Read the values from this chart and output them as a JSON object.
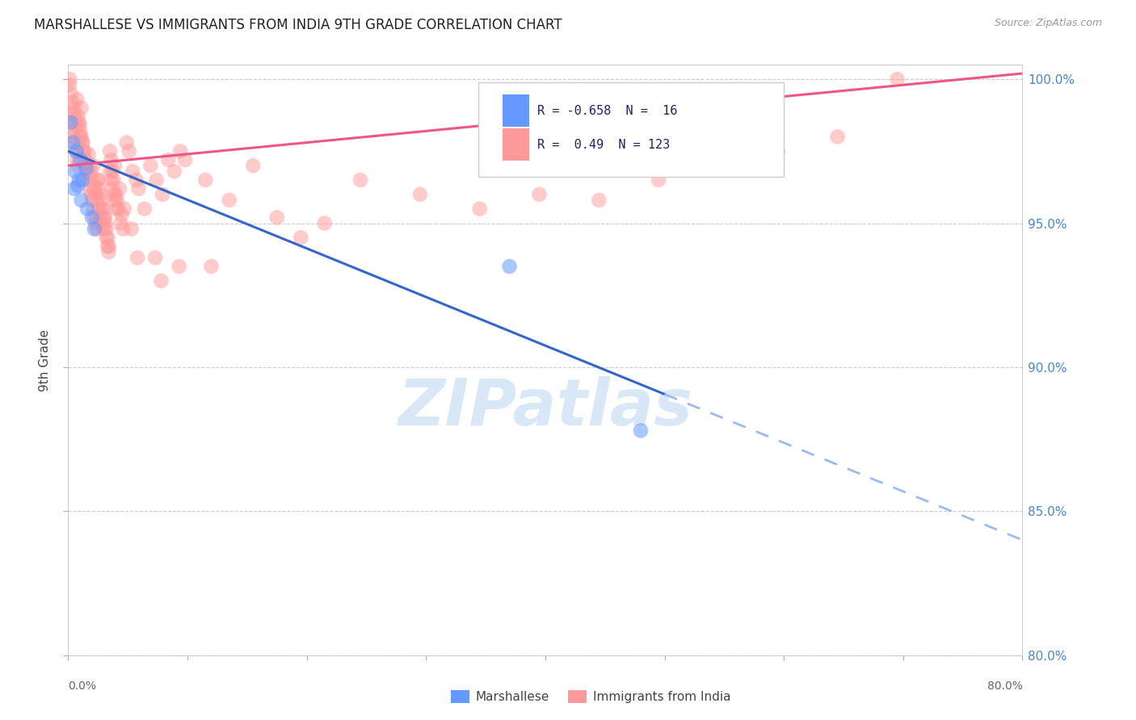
{
  "title": "MARSHALLESE VS IMMIGRANTS FROM INDIA 9TH GRADE CORRELATION CHART",
  "source": "Source: ZipAtlas.com",
  "ylabel": "9th Grade",
  "xlim": [
    0.0,
    80.0
  ],
  "ylim": [
    80.0,
    100.5
  ],
  "xtick_values": [
    0,
    10,
    20,
    30,
    40,
    50,
    60,
    70,
    80
  ],
  "ytick_labels": [
    "80.0%",
    "85.0%",
    "90.0%",
    "95.0%",
    "100.0%"
  ],
  "ytick_values": [
    80,
    85,
    90,
    95,
    100
  ],
  "blue_color": "#6699FF",
  "blue_line_color": "#3366CC",
  "blue_dash_color": "#99BBEE",
  "pink_color": "#FF9999",
  "pink_line_color": "#EE5588",
  "blue_label": "Marshallese",
  "pink_label": "Immigrants from India",
  "blue_R": -0.658,
  "blue_N": 16,
  "pink_R": 0.49,
  "pink_N": 123,
  "blue_scatter": [
    [
      0.2,
      98.5
    ],
    [
      0.4,
      97.8
    ],
    [
      0.7,
      97.5
    ],
    [
      1.0,
      97.2
    ],
    [
      0.6,
      96.8
    ],
    [
      1.2,
      96.5
    ],
    [
      1.5,
      96.9
    ],
    [
      0.5,
      96.2
    ],
    [
      0.9,
      96.5
    ],
    [
      1.1,
      95.8
    ],
    [
      0.8,
      96.3
    ],
    [
      1.6,
      95.5
    ],
    [
      2.0,
      95.2
    ],
    [
      2.2,
      94.8
    ],
    [
      37.0,
      93.5
    ],
    [
      48.0,
      87.8
    ]
  ],
  "pink_scatter": [
    [
      0.1,
      99.8
    ],
    [
      0.15,
      100.0
    ],
    [
      0.25,
      99.5
    ],
    [
      0.35,
      99.2
    ],
    [
      0.5,
      99.0
    ],
    [
      0.55,
      98.8
    ],
    [
      0.65,
      98.5
    ],
    [
      0.75,
      99.3
    ],
    [
      0.85,
      98.7
    ],
    [
      0.95,
      98.4
    ],
    [
      1.0,
      98.0
    ],
    [
      1.1,
      99.0
    ],
    [
      1.2,
      97.8
    ],
    [
      1.3,
      97.5
    ],
    [
      1.4,
      97.2
    ],
    [
      1.5,
      97.0
    ],
    [
      1.6,
      96.8
    ],
    [
      1.7,
      97.4
    ],
    [
      1.8,
      97.0
    ],
    [
      1.9,
      96.8
    ],
    [
      2.0,
      96.5
    ],
    [
      2.1,
      97.0
    ],
    [
      2.2,
      96.2
    ],
    [
      2.3,
      96.0
    ],
    [
      2.4,
      95.8
    ],
    [
      2.5,
      96.5
    ],
    [
      2.6,
      95.5
    ],
    [
      2.7,
      95.2
    ],
    [
      2.8,
      95.0
    ],
    [
      2.9,
      95.5
    ],
    [
      3.0,
      94.8
    ],
    [
      3.1,
      95.2
    ],
    [
      3.2,
      94.5
    ],
    [
      3.3,
      94.2
    ],
    [
      3.4,
      94.0
    ],
    [
      3.5,
      97.5
    ],
    [
      3.6,
      97.2
    ],
    [
      3.7,
      96.8
    ],
    [
      3.8,
      96.5
    ],
    [
      3.9,
      97.0
    ],
    [
      4.0,
      96.0
    ],
    [
      4.1,
      95.8
    ],
    [
      4.2,
      95.5
    ],
    [
      4.3,
      96.2
    ],
    [
      4.4,
      95.0
    ],
    [
      4.5,
      95.3
    ],
    [
      4.6,
      94.8
    ],
    [
      4.7,
      95.5
    ],
    [
      4.9,
      97.8
    ],
    [
      5.1,
      97.5
    ],
    [
      5.4,
      96.8
    ],
    [
      5.7,
      96.5
    ],
    [
      5.9,
      96.2
    ],
    [
      6.4,
      95.5
    ],
    [
      6.9,
      97.0
    ],
    [
      7.4,
      96.5
    ],
    [
      7.9,
      96.0
    ],
    [
      8.4,
      97.2
    ],
    [
      8.9,
      96.8
    ],
    [
      9.4,
      97.5
    ],
    [
      0.12,
      98.8
    ],
    [
      0.22,
      98.5
    ],
    [
      0.32,
      98.2
    ],
    [
      0.42,
      98.0
    ],
    [
      0.52,
      97.8
    ],
    [
      0.62,
      97.5
    ],
    [
      0.72,
      97.2
    ],
    [
      0.82,
      97.0
    ],
    [
      0.92,
      98.5
    ],
    [
      1.02,
      98.2
    ],
    [
      1.12,
      98.0
    ],
    [
      1.22,
      97.8
    ],
    [
      1.32,
      97.5
    ],
    [
      1.42,
      97.2
    ],
    [
      1.52,
      97.0
    ],
    [
      1.62,
      96.8
    ],
    [
      1.72,
      96.5
    ],
    [
      1.82,
      96.2
    ],
    [
      1.92,
      96.0
    ],
    [
      2.02,
      95.8
    ],
    [
      2.12,
      95.5
    ],
    [
      2.22,
      95.2
    ],
    [
      2.32,
      95.0
    ],
    [
      2.42,
      94.8
    ],
    [
      2.52,
      96.5
    ],
    [
      2.62,
      96.2
    ],
    [
      2.72,
      96.0
    ],
    [
      2.82,
      95.8
    ],
    [
      2.92,
      95.5
    ],
    [
      3.02,
      95.2
    ],
    [
      3.12,
      95.0
    ],
    [
      3.22,
      94.8
    ],
    [
      3.32,
      94.5
    ],
    [
      3.42,
      94.2
    ],
    [
      3.52,
      96.8
    ],
    [
      3.62,
      96.5
    ],
    [
      3.72,
      96.2
    ],
    [
      3.82,
      96.0
    ],
    [
      3.92,
      95.8
    ],
    [
      4.02,
      95.5
    ],
    [
      9.8,
      97.2
    ],
    [
      11.5,
      96.5
    ],
    [
      13.5,
      95.8
    ],
    [
      15.5,
      97.0
    ],
    [
      5.8,
      93.8
    ],
    [
      7.8,
      93.0
    ],
    [
      17.5,
      95.2
    ],
    [
      12.0,
      93.5
    ],
    [
      19.5,
      94.5
    ],
    [
      21.5,
      95.0
    ],
    [
      24.5,
      96.5
    ],
    [
      29.5,
      96.0
    ],
    [
      34.5,
      95.5
    ],
    [
      39.5,
      96.0
    ],
    [
      44.5,
      95.8
    ],
    [
      49.5,
      96.5
    ],
    [
      54.5,
      97.0
    ],
    [
      59.5,
      97.5
    ],
    [
      64.5,
      98.0
    ],
    [
      69.5,
      100.0
    ],
    [
      5.3,
      94.8
    ],
    [
      7.3,
      93.8
    ],
    [
      9.3,
      93.5
    ]
  ],
  "watermark": "ZIPatlas",
  "watermark_color": "#aaccee",
  "background_color": "#ffffff",
  "grid_color": "#cccccc",
  "blue_line_x0": 0.0,
  "blue_line_y0": 97.5,
  "blue_line_x1": 80.0,
  "blue_line_y1": 84.0,
  "blue_solid_end": 50.0,
  "pink_line_x0": 0.0,
  "pink_line_y0": 97.0,
  "pink_line_x1": 80.0,
  "pink_line_y1": 100.2
}
